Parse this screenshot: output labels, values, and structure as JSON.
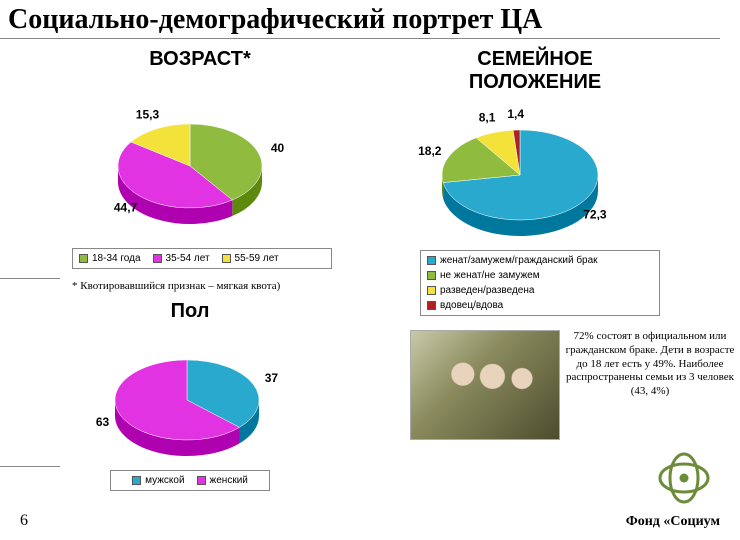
{
  "title": "Социально-демографический портрет ЦА",
  "page_number": "6",
  "footer_brand": "Фонд «Социум",
  "age_chart": {
    "title": "ВОЗРАСТ*",
    "type": "pie",
    "slices": [
      {
        "label": "18-34 года",
        "value": 40,
        "color": "#8fbc3f"
      },
      {
        "label": "35-54 лет",
        "value": 44.7,
        "color": "#e233e2"
      },
      {
        "label": "55-59 лет",
        "value": 15.3,
        "color": "#f2e23a"
      }
    ],
    "value_labels": [
      "40",
      "44,7",
      "15,3"
    ],
    "background_color": "#ffffff",
    "title_fontsize": 20,
    "label_fontsize": 12,
    "note": "* Квотировавшийся признак – мягкая квота)"
  },
  "marital_chart": {
    "title": "СЕМЕЙНОЕ ПОЛОЖЕНИЕ",
    "type": "pie",
    "slices": [
      {
        "label": "женат/замужем/гражданский брак",
        "value": 72.3,
        "color": "#2aa9cf"
      },
      {
        "label": "не женат/не замужем",
        "value": 18.2,
        "color": "#8fbc3f"
      },
      {
        "label": "разведен/разведена",
        "value": 8.1,
        "color": "#f2e23a"
      },
      {
        "label": "вдовец/вдова",
        "value": 1.4,
        "color": "#b02020"
      }
    ],
    "value_labels": [
      "72,3",
      "18,2",
      "8,1",
      "1,4"
    ],
    "background_color": "#ffffff",
    "title_fontsize": 20,
    "label_fontsize": 12,
    "description": "72% состоят в официальном или гражданском браке. Дети в возрасте до 18 лет есть у 49%. Наиболее распространены семьи из 3 человек (43, 4%)"
  },
  "gender_chart": {
    "title": "Пол",
    "type": "pie",
    "slices": [
      {
        "label": "мужской",
        "value": 37,
        "color": "#2aa9cf"
      },
      {
        "label": "женский",
        "value": 63,
        "color": "#e233e2"
      }
    ],
    "value_labels": [
      "37",
      "63"
    ],
    "background_color": "#ffffff",
    "title_fontsize": 20,
    "label_fontsize": 12
  },
  "logo_color": "#6d8c3a"
}
